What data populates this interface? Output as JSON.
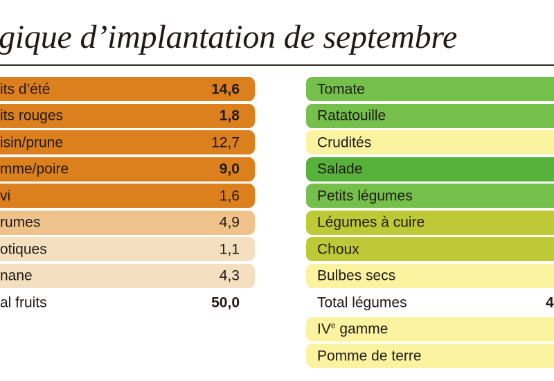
{
  "header": {
    "title": "gique d’implantation de septembre"
  },
  "fruits": {
    "rows": [
      {
        "label": "its d’été",
        "value": "14,6",
        "bold": true,
        "color": "#dc7f1d"
      },
      {
        "label": "its rouges",
        "value": "1,8",
        "bold": true,
        "color": "#dc7f1d"
      },
      {
        "label": "isin/prune",
        "value": "12,7",
        "bold": false,
        "color": "#dc7f1d"
      },
      {
        "label": "mme/poire",
        "value": "9,0",
        "bold": true,
        "color": "#dc7f1d"
      },
      {
        "label": "vi",
        "value": "1,6",
        "bold": false,
        "color": "#dc7f1d"
      },
      {
        "label": "rumes",
        "value": "4,9",
        "bold": false,
        "color": "#efc28b"
      },
      {
        "label": "otiques",
        "value": "1,1",
        "bold": false,
        "color": "#f4dfc0"
      },
      {
        "label": "nane",
        "value": "4,3",
        "bold": false,
        "color": "#f4dfc0"
      }
    ],
    "total": {
      "label": "al fruits",
      "value": "50,0"
    }
  },
  "vegetables": {
    "rows": [
      {
        "label": "Tomate",
        "color": "#74c04a"
      },
      {
        "label": "Ratatouille",
        "color": "#74c04a"
      },
      {
        "label": "Crudités",
        "color": "#fbf3a0"
      },
      {
        "label": "Salade",
        "color": "#58b13a"
      },
      {
        "label": "Petits légumes",
        "color": "#74c04a"
      },
      {
        "label": "Légumes à cuire",
        "color": "#bdc936"
      },
      {
        "label": "Choux",
        "color": "#bdc936"
      },
      {
        "label": "Bulbes secs",
        "color": "#fbf3a0"
      }
    ],
    "total": {
      "label": "Total légumes",
      "value": "4"
    },
    "after_total": [
      {
        "label": "IV",
        "sup": "e",
        "label_rest": " gamme",
        "color": "#fbf3a0"
      },
      {
        "label": "Pomme de terre",
        "color": "#fbf3a0"
      }
    ]
  }
}
